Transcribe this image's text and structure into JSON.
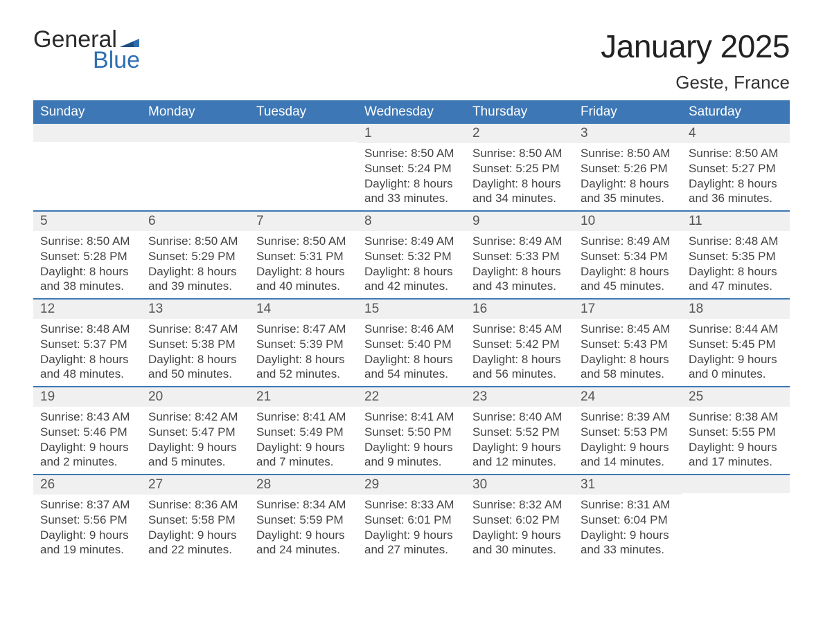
{
  "brand": {
    "word1": "General",
    "word2": "Blue"
  },
  "title": "January 2025",
  "location": "Geste, France",
  "colors": {
    "header_bg": "#3d77b5",
    "row_bg": "#f0f0f0",
    "rule": "#3d77b5",
    "logo_blue": "#2f6fb0",
    "logo_dark": "#2a2a2a",
    "page_bg": "#ffffff",
    "text": "#333333"
  },
  "typography": {
    "title_fontsize": 46,
    "subtitle_fontsize": 26,
    "header_fontsize": 19,
    "daynum_fontsize": 19,
    "info_fontsize": 17,
    "font_family": "Arial"
  },
  "daysOfWeek": [
    "Sunday",
    "Monday",
    "Tuesday",
    "Wednesday",
    "Thursday",
    "Friday",
    "Saturday"
  ],
  "weeks": [
    [
      null,
      null,
      null,
      {
        "day": "1",
        "sunrise": "8:50 AM",
        "sunset": "5:24 PM",
        "daylight": "8 hours and 33 minutes."
      },
      {
        "day": "2",
        "sunrise": "8:50 AM",
        "sunset": "5:25 PM",
        "daylight": "8 hours and 34 minutes."
      },
      {
        "day": "3",
        "sunrise": "8:50 AM",
        "sunset": "5:26 PM",
        "daylight": "8 hours and 35 minutes."
      },
      {
        "day": "4",
        "sunrise": "8:50 AM",
        "sunset": "5:27 PM",
        "daylight": "8 hours and 36 minutes."
      }
    ],
    [
      {
        "day": "5",
        "sunrise": "8:50 AM",
        "sunset": "5:28 PM",
        "daylight": "8 hours and 38 minutes."
      },
      {
        "day": "6",
        "sunrise": "8:50 AM",
        "sunset": "5:29 PM",
        "daylight": "8 hours and 39 minutes."
      },
      {
        "day": "7",
        "sunrise": "8:50 AM",
        "sunset": "5:31 PM",
        "daylight": "8 hours and 40 minutes."
      },
      {
        "day": "8",
        "sunrise": "8:49 AM",
        "sunset": "5:32 PM",
        "daylight": "8 hours and 42 minutes."
      },
      {
        "day": "9",
        "sunrise": "8:49 AM",
        "sunset": "5:33 PM",
        "daylight": "8 hours and 43 minutes."
      },
      {
        "day": "10",
        "sunrise": "8:49 AM",
        "sunset": "5:34 PM",
        "daylight": "8 hours and 45 minutes."
      },
      {
        "day": "11",
        "sunrise": "8:48 AM",
        "sunset": "5:35 PM",
        "daylight": "8 hours and 47 minutes."
      }
    ],
    [
      {
        "day": "12",
        "sunrise": "8:48 AM",
        "sunset": "5:37 PM",
        "daylight": "8 hours and 48 minutes."
      },
      {
        "day": "13",
        "sunrise": "8:47 AM",
        "sunset": "5:38 PM",
        "daylight": "8 hours and 50 minutes."
      },
      {
        "day": "14",
        "sunrise": "8:47 AM",
        "sunset": "5:39 PM",
        "daylight": "8 hours and 52 minutes."
      },
      {
        "day": "15",
        "sunrise": "8:46 AM",
        "sunset": "5:40 PM",
        "daylight": "8 hours and 54 minutes."
      },
      {
        "day": "16",
        "sunrise": "8:45 AM",
        "sunset": "5:42 PM",
        "daylight": "8 hours and 56 minutes."
      },
      {
        "day": "17",
        "sunrise": "8:45 AM",
        "sunset": "5:43 PM",
        "daylight": "8 hours and 58 minutes."
      },
      {
        "day": "18",
        "sunrise": "8:44 AM",
        "sunset": "5:45 PM",
        "daylight": "9 hours and 0 minutes."
      }
    ],
    [
      {
        "day": "19",
        "sunrise": "8:43 AM",
        "sunset": "5:46 PM",
        "daylight": "9 hours and 2 minutes."
      },
      {
        "day": "20",
        "sunrise": "8:42 AM",
        "sunset": "5:47 PM",
        "daylight": "9 hours and 5 minutes."
      },
      {
        "day": "21",
        "sunrise": "8:41 AM",
        "sunset": "5:49 PM",
        "daylight": "9 hours and 7 minutes."
      },
      {
        "day": "22",
        "sunrise": "8:41 AM",
        "sunset": "5:50 PM",
        "daylight": "9 hours and 9 minutes."
      },
      {
        "day": "23",
        "sunrise": "8:40 AM",
        "sunset": "5:52 PM",
        "daylight": "9 hours and 12 minutes."
      },
      {
        "day": "24",
        "sunrise": "8:39 AM",
        "sunset": "5:53 PM",
        "daylight": "9 hours and 14 minutes."
      },
      {
        "day": "25",
        "sunrise": "8:38 AM",
        "sunset": "5:55 PM",
        "daylight": "9 hours and 17 minutes."
      }
    ],
    [
      {
        "day": "26",
        "sunrise": "8:37 AM",
        "sunset": "5:56 PM",
        "daylight": "9 hours and 19 minutes."
      },
      {
        "day": "27",
        "sunrise": "8:36 AM",
        "sunset": "5:58 PM",
        "daylight": "9 hours and 22 minutes."
      },
      {
        "day": "28",
        "sunrise": "8:34 AM",
        "sunset": "5:59 PM",
        "daylight": "9 hours and 24 minutes."
      },
      {
        "day": "29",
        "sunrise": "8:33 AM",
        "sunset": "6:01 PM",
        "daylight": "9 hours and 27 minutes."
      },
      {
        "day": "30",
        "sunrise": "8:32 AM",
        "sunset": "6:02 PM",
        "daylight": "9 hours and 30 minutes."
      },
      {
        "day": "31",
        "sunrise": "8:31 AM",
        "sunset": "6:04 PM",
        "daylight": "9 hours and 33 minutes."
      },
      null
    ]
  ],
  "labels": {
    "sunrise": "Sunrise: ",
    "sunset": "Sunset: ",
    "daylight": "Daylight: "
  }
}
